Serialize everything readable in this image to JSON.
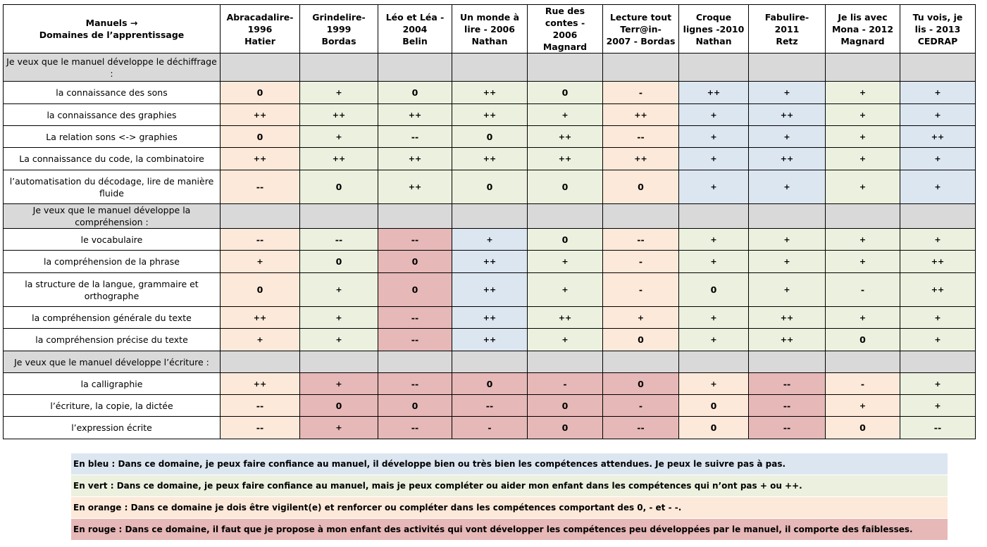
{
  "header": {
    "corner": [
      "Manuels →",
      "Domaines de l’apprentissage"
    ],
    "columns": [
      [
        "Abracadalire-",
        "1996",
        "Hatier"
      ],
      [
        "Grindelire-",
        "1999",
        "Bordas"
      ],
      [
        "Léo et Léa -",
        "2004",
        "Belin"
      ],
      [
        "Un monde à",
        "lire - 2006",
        "Nathan"
      ],
      [
        "Rue des",
        "contes -",
        "2006",
        "Magnard"
      ],
      [
        "Lecture tout",
        "Terr@in-",
        "2007 - Bordas"
      ],
      [
        "Croque",
        "lignes -2010",
        "Nathan"
      ],
      [
        "Fabulire-",
        "2011",
        "Retz"
      ],
      [
        "Je lis avec",
        "Mona - 2012",
        "Magnard"
      ],
      [
        "Tu vois, je",
        "lis - 2013",
        "CEDRAP"
      ]
    ]
  },
  "sections": [
    {
      "title": "Je veux que le manuel développe le déchiffrage :",
      "rows": [
        {
          "label": "la connaissance des sons",
          "values": [
            "0",
            "+",
            "0",
            "++",
            "0",
            "-",
            "++",
            "+",
            "+",
            "+"
          ],
          "colors": [
            "orange",
            "green",
            "green",
            "green",
            "green",
            "orange",
            "blue",
            "blue",
            "green",
            "blue"
          ]
        },
        {
          "label": "la connaissance des graphies",
          "values": [
            "++",
            "++",
            "++",
            "++",
            "+",
            "++",
            "+",
            "++",
            "+",
            "+"
          ],
          "colors": [
            "orange",
            "green",
            "green",
            "green",
            "green",
            "orange",
            "blue",
            "blue",
            "green",
            "blue"
          ]
        },
        {
          "label": "La relation sons <-> graphies",
          "values": [
            "0",
            "+",
            "--",
            "0",
            "++",
            "--",
            "+",
            "+",
            "+",
            "++"
          ],
          "colors": [
            "orange",
            "green",
            "green",
            "green",
            "green",
            "orange",
            "blue",
            "blue",
            "green",
            "blue"
          ]
        },
        {
          "label": "La connaissance du code, la combinatoire",
          "values": [
            "++",
            "++",
            "++",
            "++",
            "++",
            "++",
            "+",
            "++",
            "+",
            "+"
          ],
          "colors": [
            "orange",
            "green",
            "green",
            "green",
            "green",
            "orange",
            "blue",
            "blue",
            "green",
            "blue"
          ]
        },
        {
          "label": "l’automatisation du décodage, lire de manière fluide",
          "values": [
            "--",
            "0",
            "++",
            "0",
            "0",
            "0",
            "+",
            "+",
            "+",
            "+"
          ],
          "colors": [
            "orange",
            "green",
            "green",
            "green",
            "green",
            "orange",
            "blue",
            "blue",
            "green",
            "blue"
          ]
        }
      ]
    },
    {
      "title": "Je veux que le manuel développe la compréhension :",
      "rows": [
        {
          "label": "le vocabulaire",
          "values": [
            "--",
            "--",
            "--",
            "+",
            "0",
            "--",
            "+",
            "+",
            "+",
            "+"
          ],
          "colors": [
            "orange",
            "green",
            "red",
            "blue",
            "green",
            "orange",
            "green",
            "green",
            "green",
            "green"
          ]
        },
        {
          "label": "la compréhension de la phrase",
          "values": [
            "+",
            "0",
            "0",
            "++",
            "+",
            "-",
            "+",
            "+",
            "+",
            "++"
          ],
          "colors": [
            "orange",
            "green",
            "red",
            "blue",
            "green",
            "orange",
            "green",
            "green",
            "green",
            "green"
          ]
        },
        {
          "label": "la structure de la langue, grammaire et orthographe",
          "values": [
            "0",
            "+",
            "0",
            "++",
            "+",
            "-",
            "0",
            "+",
            "-",
            "++"
          ],
          "colors": [
            "orange",
            "green",
            "red",
            "blue",
            "green",
            "orange",
            "green",
            "green",
            "green",
            "green"
          ]
        },
        {
          "label": "la compréhension générale du texte",
          "values": [
            "++",
            "+",
            "--",
            "++",
            "++",
            "+",
            "+",
            "++",
            "+",
            "+"
          ],
          "colors": [
            "orange",
            "green",
            "red",
            "blue",
            "green",
            "orange",
            "green",
            "green",
            "green",
            "green"
          ]
        },
        {
          "label": "la compréhension précise du texte",
          "values": [
            "+",
            "+",
            "--",
            "++",
            "+",
            "0",
            "+",
            "++",
            "0",
            "+"
          ],
          "colors": [
            "orange",
            "green",
            "red",
            "blue",
            "green",
            "orange",
            "green",
            "green",
            "green",
            "green"
          ]
        }
      ]
    },
    {
      "title": "Je veux que le manuel développe l’écriture :",
      "rows": [
        {
          "label": "la calligraphie",
          "values": [
            "++",
            "+",
            "--",
            "0",
            "-",
            "0",
            "+",
            "--",
            "-",
            "+"
          ],
          "colors": [
            "orange",
            "red",
            "red",
            "red",
            "red",
            "red",
            "orange",
            "red",
            "orange",
            "green"
          ]
        },
        {
          "label": "l’écriture, la copie, la dictée",
          "values": [
            "--",
            "0",
            "0",
            "--",
            "0",
            "-",
            "0",
            "--",
            "+",
            "+"
          ],
          "colors": [
            "orange",
            "red",
            "red",
            "red",
            "red",
            "red",
            "orange",
            "red",
            "orange",
            "green"
          ]
        },
        {
          "label": "l’expression écrite",
          "values": [
            "--",
            "+",
            "--",
            "-",
            "0",
            "--",
            "0",
            "--",
            "0",
            "--"
          ],
          "colors": [
            "orange",
            "red",
            "red",
            "red",
            "red",
            "red",
            "orange",
            "red",
            "orange",
            "green"
          ]
        }
      ]
    }
  ],
  "legend": [
    {
      "color": "blue",
      "text": "En bleu : Dans ce domaine, je peux faire confiance au manuel, il développe bien ou très bien les compétences attendues. Je peux le suivre pas à pas."
    },
    {
      "color": "green",
      "text": "En vert : Dans ce domaine, je peux faire confiance au manuel, mais je peux compléter ou aider mon enfant dans les compétences qui n’ont pas + ou ++."
    },
    {
      "color": "orange",
      "text": "En orange : Dans ce domaine je dois être vigilent(e) et renforcer ou compléter dans les compétences comportant des 0, - et - -."
    },
    {
      "color": "red",
      "text": "En rouge : Dans ce domaine, il faut que je propose à mon enfant des activités qui vont développer les compétences peu développées par le manuel, il comporte des faiblesses."
    }
  ],
  "palette": {
    "blue": "#dce6f1",
    "green": "#ebf1de",
    "orange": "#fde9d9",
    "red": "#e6b8b7",
    "gray": "#d9d9d9"
  }
}
